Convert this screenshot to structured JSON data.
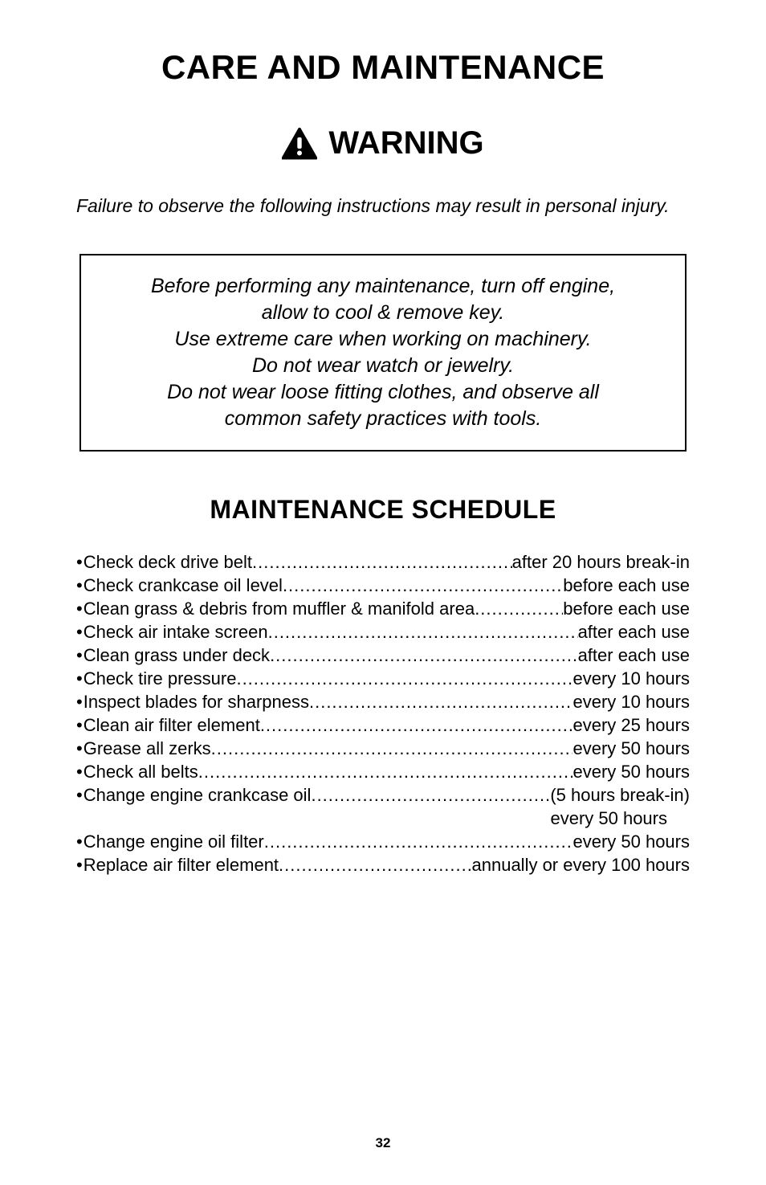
{
  "title": "CARE AND MAINTENANCE",
  "warning": {
    "icon_name": "warning-triangle-icon",
    "label": "WARNING",
    "triangle_fill": "#000000",
    "bang_fill": "#ffffff"
  },
  "failure_line": "Failure to observe the following instructions may result in personal injury.",
  "notice_lines": [
    "Before performing any maintenance, turn off engine,",
    "allow to cool & remove key.",
    "Use extreme care when working on machinery.",
    "Do not wear watch or jewelry.",
    "Do not wear loose fitting clothes, and observe all",
    "common safety practices with tools."
  ],
  "section_title": "MAINTENANCE SCHEDULE",
  "schedule": [
    {
      "label": "Check deck drive belt",
      "value": "after 20 hours break-in"
    },
    {
      "label": "Check crankcase oil level",
      "value": "before each use"
    },
    {
      "label": "Clean grass & debris from muffler & manifold area",
      "value": "before each use"
    },
    {
      "label": "Check air intake screen",
      "value": "after each use"
    },
    {
      "label": "Clean grass under deck",
      "value": "after each use"
    },
    {
      "label": "Check tire pressure",
      "value": "every 10 hours"
    },
    {
      "label": "Inspect blades for sharpness",
      "value": "every 10 hours"
    },
    {
      "label": "Clean air filter element",
      "value": "every 25 hours"
    },
    {
      "label": "Grease all zerks",
      "value": "every 50 hours"
    },
    {
      "label": "Check all belts",
      "value": "every 50 hours"
    },
    {
      "label": "Change engine crankcase oil",
      "value": "(5 hours break-in)",
      "extra": "every 50 hours"
    },
    {
      "label": "Change engine oil filter",
      "value": "every 50 hours"
    },
    {
      "label": "Replace air filter element",
      "value": "annually or every 100 hours"
    }
  ],
  "page_number": "32",
  "style": {
    "bg": "#ffffff",
    "text": "#000000",
    "title_fontsize": 42,
    "warning_fontsize": 40,
    "body_fontsize": 22,
    "italic_fontsize": 23,
    "notice_fontsize": 25,
    "section_title_fontsize": 32,
    "border_width": 2
  }
}
